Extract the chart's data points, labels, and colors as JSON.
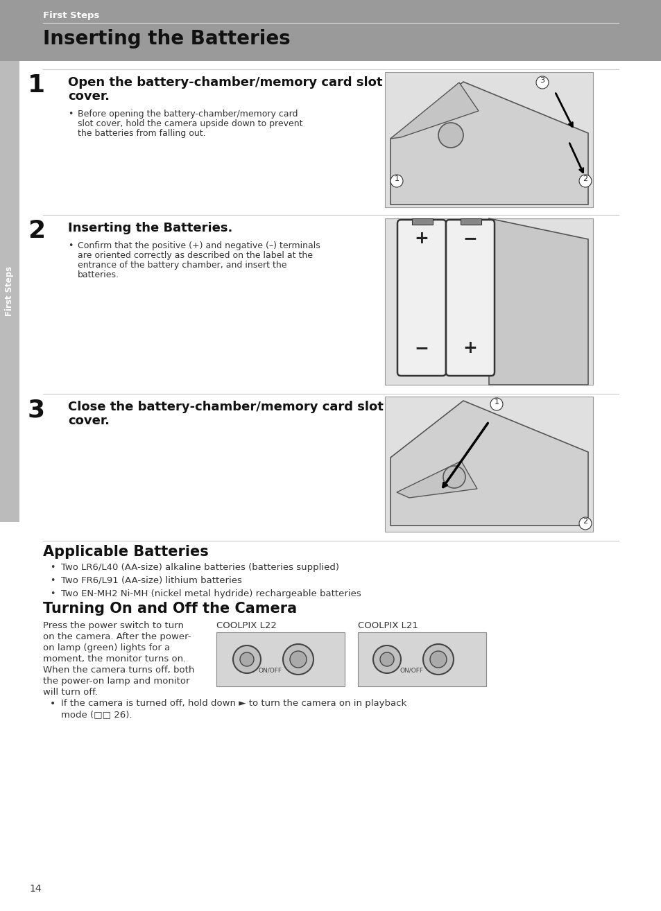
{
  "page_bg": "#ffffff",
  "header_bg": "#9a9a9a",
  "header_text": "First Steps",
  "title_text": "Inserting the Batteries",
  "sidebar_bg": "#bbbbbb",
  "sidebar_text": "First Steps",
  "section1_num": "1",
  "section1_heading_line1": "Open the battery-chamber/memory card slot",
  "section1_heading_line2": "cover.",
  "section1_bullet_line1": "Before opening the battery-chamber/memory card",
  "section1_bullet_line2": "slot cover, hold the camera upside down to prevent",
  "section1_bullet_line3": "the batteries from falling out.",
  "section2_num": "2",
  "section2_heading": "Inserting the Batteries.",
  "section2_bullet_line1": "Confirm that the positive (+) and negative (–) terminals",
  "section2_bullet_line2": "are oriented correctly as described on the label at the",
  "section2_bullet_line3": "entrance of the battery chamber, and insert the",
  "section2_bullet_line4": "batteries.",
  "section3_num": "3",
  "section3_heading_line1": "Close the battery-chamber/memory card slot",
  "section3_heading_line2": "cover.",
  "applicable_title": "Applicable Batteries",
  "applicable_bullets": [
    "Two LR6/L40 (AA-size) alkaline batteries (batteries supplied)",
    "Two FR6/L91 (AA-size) lithium batteries",
    "Two EN-MH2 Ni-MH (nickel metal hydride) rechargeable batteries"
  ],
  "turning_title": "Turning On and Off the Camera",
  "turning_lines": [
    "Press the power switch to turn",
    "on the camera. After the power-",
    "on lamp (green) lights for a",
    "moment, the monitor turns on.",
    "When the camera turns off, both",
    "the power-on lamp and monitor",
    "will turn off."
  ],
  "coolpix_l22_label": "COOLPIX L22",
  "coolpix_l21_label": "COOLPIX L21",
  "footer_line1": "If the camera is turned off, hold down ► to turn the camera on in playback",
  "footer_line2": "mode (□□ 26).",
  "page_number": "14"
}
